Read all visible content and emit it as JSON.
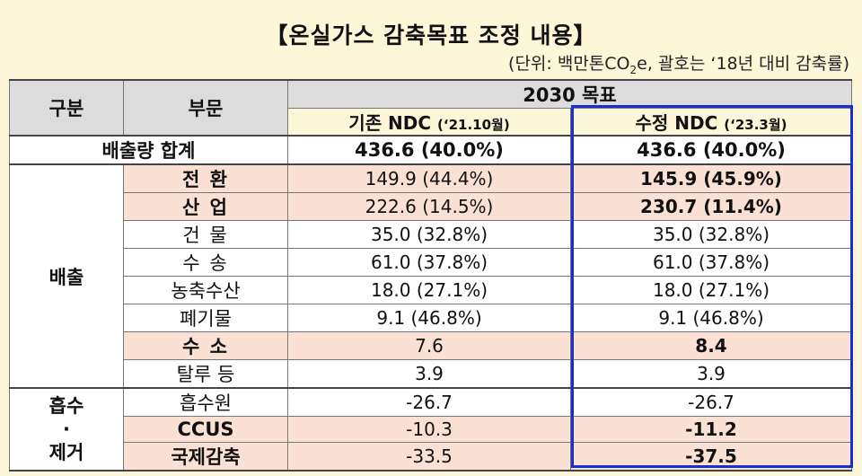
{
  "title": "【온실가스 감축목표 조정 내용】",
  "unit": {
    "prefix": "(단위: 백만톤CO",
    "sub": "2",
    "suffix": "e, 괄호는 ‘18년 대비 감축률)"
  },
  "header": {
    "col_category": "구분",
    "col_sector": "부문",
    "col_target": "2030 목표",
    "col_existing_main": "기존 NDC ",
    "col_existing_date": "(‘21.10월)",
    "col_revised_main": "수정 NDC ",
    "col_revised_date": "(‘23.3월)"
  },
  "total": {
    "label": "배출량 합계",
    "existing": "436.6 (40.0%)",
    "revised": "436.6 (40.0%)"
  },
  "groups": {
    "emission": "배출",
    "absorb_1": "흡수",
    "absorb_dot": "·",
    "absorb_2": "제거"
  },
  "rows": [
    {
      "sector": "전 환",
      "existing": "149.9 (44.4%)",
      "revised": "145.9 (45.9%)"
    },
    {
      "sector": "산 업",
      "existing": "222.6 (14.5%)",
      "revised": "230.7 (11.4%)"
    },
    {
      "sector": "건 물",
      "existing": "35.0 (32.8%)",
      "revised": "35.0 (32.8%)"
    },
    {
      "sector": "수 송",
      "existing": "61.0 (37.8%)",
      "revised": "61.0 (37.8%)"
    },
    {
      "sector": "농축수산",
      "existing": "18.0 (27.1%)",
      "revised": "18.0 (27.1%)"
    },
    {
      "sector": "폐기물",
      "existing": "9.1 (46.8%)",
      "revised": "9.1 (46.8%)"
    },
    {
      "sector": "수 소",
      "existing": "7.6",
      "revised": "8.4"
    },
    {
      "sector": "탈루 등",
      "existing": "3.9",
      "revised": "3.9"
    },
    {
      "sector": "흡수원",
      "existing": "-26.7",
      "revised": "-26.7"
    },
    {
      "sector": "CCUS",
      "existing": "-10.3",
      "revised": "-11.2"
    },
    {
      "sector": "국제감축",
      "existing": "-33.5",
      "revised": "-37.5"
    }
  ],
  "colors": {
    "background": "#fdf6d8",
    "header_gray": "#dcdcdc",
    "highlight": "#fbe1d3",
    "box_blue": "#1a2fd0"
  }
}
